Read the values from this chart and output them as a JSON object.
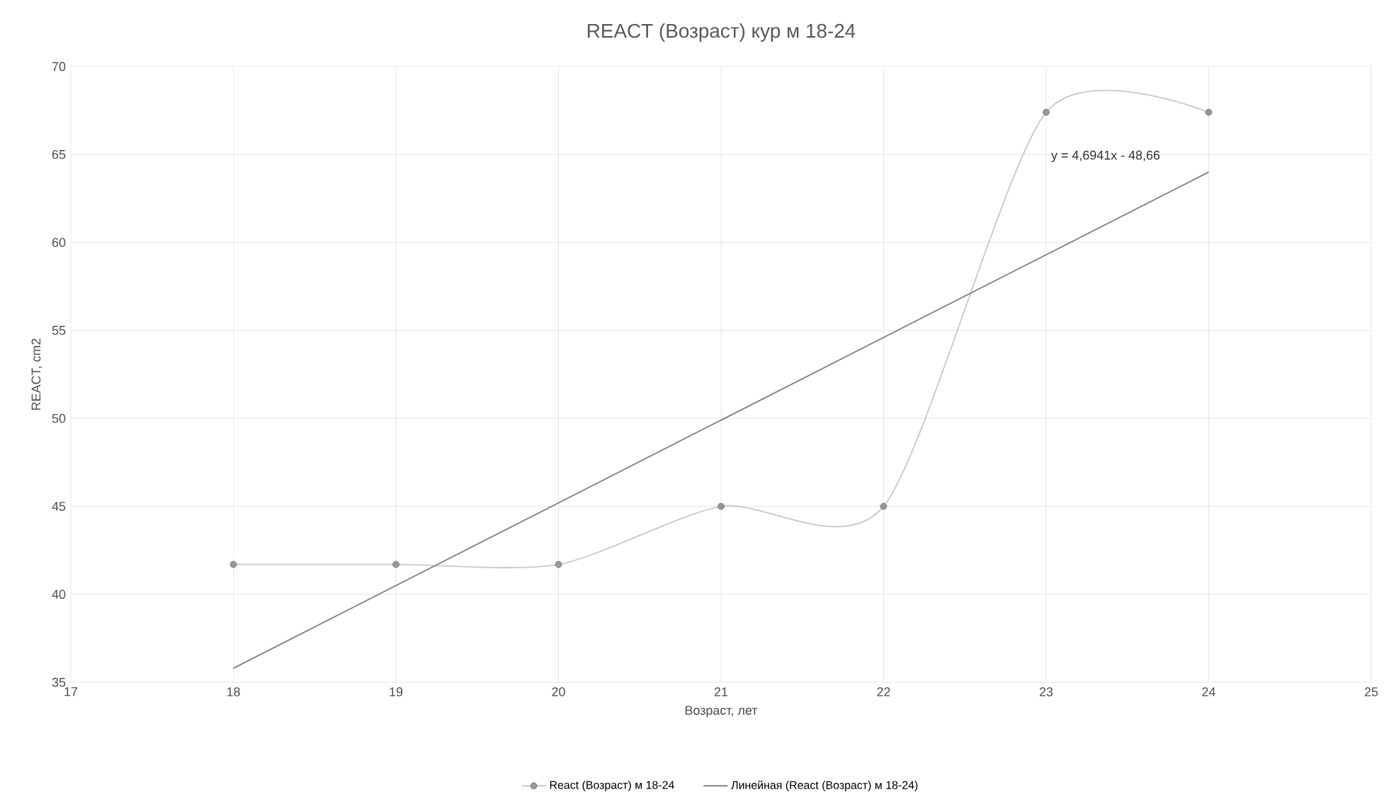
{
  "chart_data": {
    "type": "line",
    "title": "REACT (Возраст) кур м 18-24",
    "xlabel": "Возраст, лет",
    "ylabel": "REACT, cm2",
    "x": [
      18,
      19,
      20,
      21,
      22,
      23,
      24
    ],
    "series": [
      {
        "name": "React (Возраст) м 18-24",
        "color": "#c8c8c8",
        "values": [
          41.7,
          41.7,
          41.7,
          45,
          45,
          67.4,
          67.4
        ]
      },
      {
        "name": "Линейная (React (Возраст) м 18-24)",
        "type": "line",
        "color": "#808080",
        "marker": "none",
        "x": [
          18,
          24
        ],
        "values": [
          35.8,
          64
        ]
      }
    ],
    "annotations": [
      "y = 4,6941x - 48,66"
    ],
    "xlim": [
      17,
      25
    ],
    "xticks": [
      17,
      18,
      19,
      20,
      21,
      22,
      23,
      24,
      25
    ],
    "ylim": [
      35,
      70
    ],
    "yticks": [
      35,
      40,
      45,
      50,
      55,
      60,
      65,
      70
    ],
    "grid": true,
    "legend": "bottom",
    "marker": "circle"
  }
}
